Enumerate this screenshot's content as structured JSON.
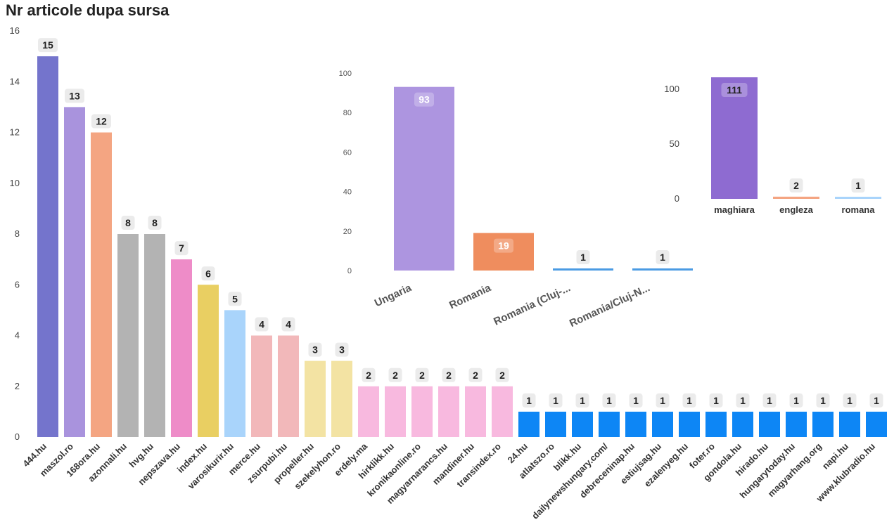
{
  "chart_data": [
    {
      "type": "bar",
      "title": "Nr articole dupa sursa",
      "categories": [
        "444.hu",
        "maszol.ro",
        "168ora.hu",
        "azonnali.hu",
        "hvg.hu",
        "nepszava.hu",
        "index.hu",
        "varosikurir.hu",
        "merce.hu",
        "zsurpubi.hu",
        "propeller.hu",
        "szekelyhon.ro",
        "erdely.ma",
        "hirklikk.hu",
        "kronikaonline.ro",
        "magyarnarancs.hu",
        "mandiner.hu",
        "transindex.ro",
        "24.hu",
        "atlatszo.ro",
        "blikk.hu",
        "dailynewshungary.com/",
        "debreceninap.hu",
        "estiujsag.hu",
        "ezalenyeg.hu",
        "foter.ro",
        "gondola.hu",
        "hirado.hu",
        "hungarytoday.hu",
        "magyarhang.org",
        "napi.hu",
        "www.klubradio.hu"
      ],
      "values": [
        15,
        13,
        12,
        8,
        8,
        7,
        6,
        5,
        4,
        4,
        3,
        3,
        2,
        2,
        2,
        2,
        2,
        2,
        1,
        1,
        1,
        1,
        1,
        1,
        1,
        1,
        1,
        1,
        1,
        1,
        1,
        1
      ],
      "colors": [
        "#7474cc",
        "#a993dd",
        "#f4a582",
        "#b3b3b3",
        "#b3b3b3",
        "#ee8cc8",
        "#e9cf62",
        "#a9d4fb",
        "#f2b8ba",
        "#f2b8ba",
        "#f3e3a3",
        "#f3e3a3",
        "#f8b9df",
        "#f8b9df",
        "#f8b9df",
        "#f8b9df",
        "#f8b9df",
        "#f8b9df",
        "#0d86f5",
        "#0d86f5",
        "#0d86f5",
        "#0d86f5",
        "#0d86f5",
        "#0d86f5",
        "#0d86f5",
        "#0d86f5",
        "#0d86f5",
        "#0d86f5",
        "#0d86f5",
        "#0d86f5",
        "#0d86f5",
        "#0d86f5"
      ],
      "yticks": [
        0,
        2,
        4,
        6,
        8,
        10,
        12,
        14,
        16
      ],
      "ylim": [
        0,
        16
      ]
    },
    {
      "type": "bar",
      "categories": [
        "Ungaria",
        "Romania",
        "Romania (Cluj-...",
        "Romania/Cluj-N..."
      ],
      "values": [
        93,
        19,
        1,
        1
      ],
      "colors": [
        "#ad95e0",
        "#ef8d5e",
        "#4a9be3",
        "#4a9be3"
      ],
      "yticks": [
        0,
        20,
        40,
        60,
        80,
        100
      ],
      "ylim": [
        0,
        100
      ]
    },
    {
      "type": "bar",
      "categories": [
        "maghiara",
        "engleza",
        "romana"
      ],
      "values": [
        111,
        2,
        1
      ],
      "colors": [
        "#8e6bd1",
        "#f4a582",
        "#a9d4fb"
      ],
      "yticks": [
        0,
        50,
        100
      ],
      "ylim": [
        0,
        111
      ]
    }
  ]
}
